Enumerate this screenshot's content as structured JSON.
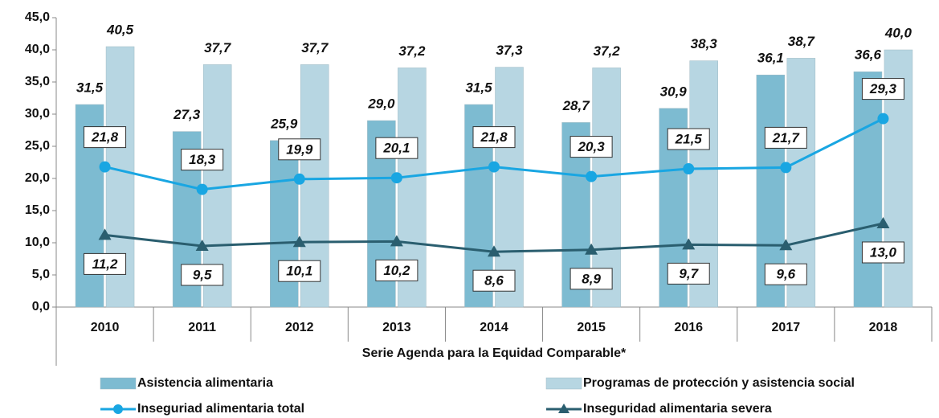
{
  "chart_data": {
    "type": "bar_line",
    "categories": [
      "2010",
      "2011",
      "2012",
      "2013",
      "2014",
      "2015",
      "2016",
      "2017",
      "2018"
    ],
    "x_label": "Serie Agenda para la Equidad Comparable*",
    "series": [
      {
        "name": "Asistencia alimentaria",
        "kind": "bar",
        "color": "#7dbbd1",
        "values": [
          31.5,
          27.3,
          25.9,
          29.0,
          31.5,
          28.7,
          30.9,
          36.1,
          36.6
        ],
        "value_labels": [
          "31,5",
          "27,3",
          "25,9",
          "29,0",
          "31,5",
          "28,7",
          "30,9",
          "36,1",
          "36,6"
        ]
      },
      {
        "name": "Programas de protección y asistencia social",
        "kind": "bar",
        "color": "#b7d6e2",
        "values": [
          40.5,
          37.7,
          37.7,
          37.2,
          37.3,
          37.2,
          38.3,
          38.7,
          40.0
        ],
        "value_labels": [
          "40,5",
          "37,7",
          "37,7",
          "37,2",
          "37,3",
          "37,2",
          "38,3",
          "38,7",
          "40,0"
        ]
      },
      {
        "name": "Inseguriad alimentaria total",
        "kind": "line",
        "marker": "circle",
        "color": "#19a6e2",
        "values": [
          21.8,
          18.3,
          19.9,
          20.1,
          21.8,
          20.3,
          21.5,
          21.7,
          29.3
        ],
        "value_labels": [
          "21,8",
          "18,3",
          "19,9",
          "20,1",
          "21,8",
          "20,3",
          "21,5",
          "21,7",
          "29,3"
        ]
      },
      {
        "name": "Inseguridad alimentaria severa",
        "kind": "line",
        "marker": "triangle",
        "color": "#2a5e6f",
        "values": [
          11.2,
          9.5,
          10.1,
          10.2,
          8.6,
          8.9,
          9.7,
          9.6,
          13.0
        ],
        "value_labels": [
          "11,2",
          "9,5",
          "10,1",
          "10,2",
          "8,6",
          "8,9",
          "9,7",
          "9,6",
          "13,0"
        ]
      }
    ],
    "ylim": [
      0,
      45
    ],
    "yticks": [
      {
        "value": 0,
        "label": "0,0"
      },
      {
        "value": 5,
        "label": "5,0"
      },
      {
        "value": 10,
        "label": "10,0"
      },
      {
        "value": 15,
        "label": "15,0"
      },
      {
        "value": 20,
        "label": "20,0"
      },
      {
        "value": 25,
        "label": "25,0"
      },
      {
        "value": 30,
        "label": "30,0"
      },
      {
        "value": 35,
        "label": "35,0"
      },
      {
        "value": 40,
        "label": "40,0"
      },
      {
        "value": 45,
        "label": "45,0"
      }
    ],
    "grid": false
  }
}
